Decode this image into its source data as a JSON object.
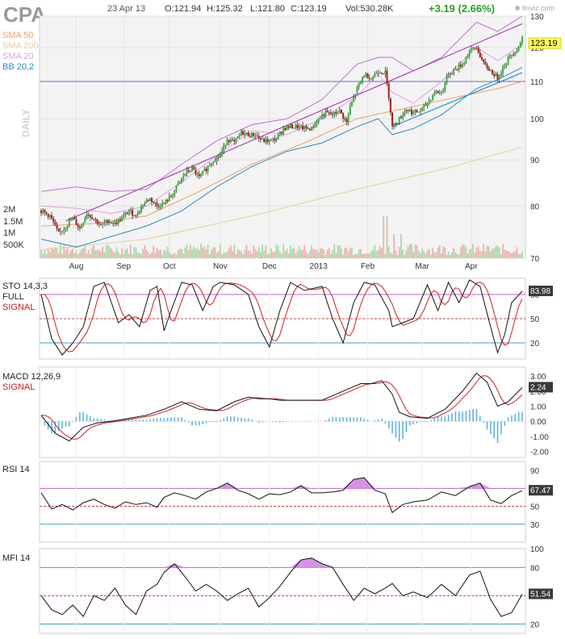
{
  "header": {
    "ticker": "CPA",
    "date": "23 Apr 13",
    "open": "O:121.94",
    "high": "H:125.32",
    "low": "L:121.80",
    "close": "C:123.19",
    "volume": "Vol:530.28K",
    "change": "+3.19 (2.66%)",
    "watermark": "finviz.com",
    "change_color": "#22a022"
  },
  "legend": [
    {
      "label": "SMA 50",
      "color": "#f2a060"
    },
    {
      "label": "SMA 200",
      "color": "#e8d090"
    },
    {
      "label": "SMA 20",
      "color": "#e0a0e0"
    },
    {
      "label": "BB 20,2",
      "color": "#2a8fc0"
    }
  ],
  "chart_data": [
    {
      "type": "candlestick",
      "name": "price",
      "side_label": "DAILY",
      "months": [
        "Aug",
        "Sep",
        "Oct",
        "Nov",
        "Dec",
        "2013",
        "Feb",
        "Mar",
        "Apr"
      ],
      "yticks": [
        70,
        80,
        90,
        100,
        110,
        120,
        130
      ],
      "ylim": [
        70,
        130
      ],
      "scale": "log",
      "last_price": "123.19",
      "volume_ticks": [
        "2M",
        "1.5M",
        "1M",
        "500K"
      ],
      "horizontal_line": 110,
      "close_path": [
        [
          0,
          79
        ],
        [
          5,
          78
        ],
        [
          10,
          74.5
        ],
        [
          14,
          76
        ],
        [
          18,
          77.5
        ],
        [
          22,
          75.5
        ],
        [
          26,
          78.5
        ],
        [
          30,
          77.5
        ],
        [
          34,
          76
        ],
        [
          38,
          77
        ],
        [
          42,
          76.5
        ],
        [
          46,
          77.5
        ],
        [
          50,
          79
        ],
        [
          54,
          78
        ],
        [
          58,
          80.5
        ],
        [
          62,
          81.5
        ],
        [
          66,
          80
        ],
        [
          70,
          80.5
        ],
        [
          74,
          82
        ],
        [
          78,
          84.5
        ],
        [
          82,
          87
        ],
        [
          86,
          88
        ],
        [
          90,
          86
        ],
        [
          94,
          88
        ],
        [
          98,
          90
        ],
        [
          102,
          91
        ],
        [
          106,
          95
        ],
        [
          110,
          94
        ],
        [
          114,
          96.5
        ],
        [
          118,
          96
        ],
        [
          122,
          96
        ],
        [
          126,
          94.5
        ],
        [
          130,
          94.5
        ],
        [
          134,
          95
        ],
        [
          138,
          97.5
        ],
        [
          142,
          98
        ],
        [
          146,
          98
        ],
        [
          150,
          97.5
        ],
        [
          154,
          97.5
        ],
        [
          158,
          100
        ],
        [
          162,
          101.5
        ],
        [
          166,
          101
        ],
        [
          170,
          102
        ],
        [
          174,
          99
        ],
        [
          176,
          103
        ],
        [
          180,
          108
        ],
        [
          184,
          112
        ],
        [
          188,
          111
        ],
        [
          192,
          113
        ],
        [
          196,
          112.5
        ],
        [
          198,
          106
        ],
        [
          200,
          98
        ],
        [
          204,
          100
        ],
        [
          208,
          102.5
        ],
        [
          212,
          101.5
        ],
        [
          216,
          102
        ],
        [
          220,
          104
        ],
        [
          224,
          107
        ],
        [
          228,
          107
        ],
        [
          232,
          112
        ],
        [
          236,
          113.5
        ],
        [
          240,
          115
        ],
        [
          244,
          119
        ],
        [
          248,
          120
        ],
        [
          252,
          115
        ],
        [
          256,
          113
        ],
        [
          260,
          111
        ],
        [
          264,
          115
        ],
        [
          268,
          118
        ],
        [
          272,
          120
        ],
        [
          274,
          123.19
        ]
      ],
      "sma20_path": [
        [
          0,
          80
        ],
        [
          20,
          79.5
        ],
        [
          40,
          78.5
        ],
        [
          60,
          80
        ],
        [
          80,
          85
        ],
        [
          100,
          91
        ],
        [
          120,
          97
        ],
        [
          140,
          96
        ],
        [
          160,
          100
        ],
        [
          180,
          106
        ],
        [
          192,
          112
        ],
        [
          200,
          107
        ],
        [
          212,
          104
        ],
        [
          228,
          110
        ],
        [
          248,
          120
        ],
        [
          260,
          116
        ],
        [
          274,
          121
        ]
      ],
      "sma50_path": [
        [
          0,
          76
        ],
        [
          30,
          76.5
        ],
        [
          60,
          78
        ],
        [
          90,
          83
        ],
        [
          120,
          89
        ],
        [
          150,
          94
        ],
        [
          180,
          100
        ],
        [
          200,
          102
        ],
        [
          230,
          105
        ],
        [
          260,
          108
        ],
        [
          274,
          110
        ]
      ],
      "sma200_path": [
        [
          0,
          71.5
        ],
        [
          60,
          73.5
        ],
        [
          120,
          78
        ],
        [
          180,
          83.5
        ],
        [
          230,
          88
        ],
        [
          274,
          93
        ]
      ],
      "bb_lower_path": [
        [
          0,
          73.5
        ],
        [
          20,
          72
        ],
        [
          40,
          74
        ],
        [
          60,
          76
        ],
        [
          80,
          79
        ],
        [
          100,
          84
        ],
        [
          120,
          88.5
        ],
        [
          140,
          92
        ],
        [
          160,
          94
        ],
        [
          180,
          98
        ],
        [
          192,
          100
        ],
        [
          200,
          96
        ],
        [
          212,
          97.5
        ],
        [
          228,
          101
        ],
        [
          248,
          108
        ],
        [
          260,
          110.5
        ],
        [
          274,
          114
        ]
      ],
      "bb_upper_path": [
        [
          0,
          83
        ],
        [
          20,
          84
        ],
        [
          40,
          83
        ],
        [
          60,
          83.5
        ],
        [
          80,
          89
        ],
        [
          100,
          94.5
        ],
        [
          120,
          98.5
        ],
        [
          140,
          100
        ],
        [
          160,
          105
        ],
        [
          180,
          115
        ],
        [
          192,
          117
        ],
        [
          200,
          117
        ],
        [
          212,
          113
        ],
        [
          228,
          117
        ],
        [
          248,
          128
        ],
        [
          260,
          125
        ],
        [
          274,
          130
        ]
      ],
      "channel_upper": [
        [
          14,
          77
        ],
        [
          274,
          127.5
        ]
      ],
      "channel_lower": [
        [
          200,
          98
        ],
        [
          274,
          112.5
        ]
      ]
    },
    {
      "type": "line",
      "name": "STO 14,3,3",
      "series_labels": [
        "FULL",
        "SIGNAL"
      ],
      "yticks": [
        20,
        50,
        80
      ],
      "ylim": [
        0,
        100
      ],
      "last_value": "83.98",
      "path": [
        [
          0,
          80
        ],
        [
          6,
          25
        ],
        [
          12,
          5
        ],
        [
          18,
          20
        ],
        [
          24,
          40
        ],
        [
          30,
          90
        ],
        [
          36,
          95
        ],
        [
          40,
          70
        ],
        [
          44,
          45
        ],
        [
          50,
          55
        ],
        [
          56,
          40
        ],
        [
          62,
          85
        ],
        [
          66,
          90
        ],
        [
          70,
          35
        ],
        [
          74,
          60
        ],
        [
          80,
          95
        ],
        [
          86,
          92
        ],
        [
          92,
          60
        ],
        [
          98,
          90
        ],
        [
          102,
          95
        ],
        [
          110,
          92
        ],
        [
          118,
          80
        ],
        [
          124,
          40
        ],
        [
          130,
          15
        ],
        [
          136,
          60
        ],
        [
          142,
          95
        ],
        [
          150,
          85
        ],
        [
          160,
          90
        ],
        [
          166,
          50
        ],
        [
          172,
          20
        ],
        [
          178,
          70
        ],
        [
          184,
          95
        ],
        [
          190,
          92
        ],
        [
          198,
          60
        ],
        [
          200,
          40
        ],
        [
          206,
          45
        ],
        [
          212,
          50
        ],
        [
          220,
          92
        ],
        [
          226,
          60
        ],
        [
          232,
          95
        ],
        [
          238,
          70
        ],
        [
          244,
          98
        ],
        [
          250,
          90
        ],
        [
          256,
          40
        ],
        [
          260,
          8
        ],
        [
          264,
          30
        ],
        [
          268,
          70
        ],
        [
          274,
          83.98
        ]
      ]
    },
    {
      "type": "line+bar",
      "name": "MACD 12,26,9",
      "series_labels": [
        "SIGNAL"
      ],
      "yticks": [
        3.0,
        2.0,
        1.0,
        0.0,
        -1.0,
        -2.0
      ],
      "ylim": [
        -2.4,
        3.6
      ],
      "last_value": "2.24",
      "path": [
        [
          0,
          0.4
        ],
        [
          8,
          -0.8
        ],
        [
          16,
          -1.3
        ],
        [
          24,
          -0.4
        ],
        [
          32,
          -0.1
        ],
        [
          40,
          0
        ],
        [
          50,
          0.2
        ],
        [
          60,
          0.4
        ],
        [
          70,
          0.8
        ],
        [
          80,
          1.3
        ],
        [
          90,
          0.8
        ],
        [
          100,
          0.7
        ],
        [
          110,
          1.3
        ],
        [
          118,
          1.6
        ],
        [
          124,
          1.5
        ],
        [
          130,
          1.5
        ],
        [
          136,
          1.4
        ],
        [
          142,
          1.4
        ],
        [
          150,
          1.4
        ],
        [
          160,
          1.4
        ],
        [
          168,
          1.8
        ],
        [
          176,
          2.2
        ],
        [
          182,
          2.5
        ],
        [
          188,
          2.5
        ],
        [
          194,
          2.7
        ],
        [
          200,
          1.8
        ],
        [
          204,
          0.6
        ],
        [
          210,
          0.3
        ],
        [
          220,
          0.2
        ],
        [
          230,
          0.8
        ],
        [
          240,
          2.0
        ],
        [
          248,
          3.2
        ],
        [
          254,
          2.6
        ],
        [
          260,
          1.0
        ],
        [
          266,
          1.3
        ],
        [
          274,
          2.24
        ]
      ]
    },
    {
      "type": "line",
      "name": "RSI 14",
      "yticks": [
        90,
        70,
        50,
        30
      ],
      "ylim": [
        10,
        100
      ],
      "last_value": "67.47",
      "path": [
        [
          0,
          65
        ],
        [
          6,
          47
        ],
        [
          12,
          52
        ],
        [
          18,
          46
        ],
        [
          24,
          54
        ],
        [
          30,
          58
        ],
        [
          36,
          52
        ],
        [
          42,
          48
        ],
        [
          48,
          55
        ],
        [
          54,
          52
        ],
        [
          60,
          54
        ],
        [
          66,
          49
        ],
        [
          70,
          60
        ],
        [
          76,
          65
        ],
        [
          82,
          62
        ],
        [
          88,
          58
        ],
        [
          94,
          66
        ],
        [
          100,
          70
        ],
        [
          106,
          76
        ],
        [
          112,
          68
        ],
        [
          118,
          64
        ],
        [
          124,
          58
        ],
        [
          130,
          64
        ],
        [
          136,
          63
        ],
        [
          142,
          66
        ],
        [
          148,
          73
        ],
        [
          154,
          65
        ],
        [
          160,
          65
        ],
        [
          166,
          66
        ],
        [
          172,
          68
        ],
        [
          178,
          80
        ],
        [
          184,
          82
        ],
        [
          190,
          68
        ],
        [
          196,
          64
        ],
        [
          200,
          43
        ],
        [
          206,
          52
        ],
        [
          212,
          55
        ],
        [
          220,
          57
        ],
        [
          228,
          66
        ],
        [
          236,
          62
        ],
        [
          244,
          72
        ],
        [
          250,
          76
        ],
        [
          256,
          57
        ],
        [
          262,
          53
        ],
        [
          268,
          62
        ],
        [
          274,
          67.47
        ]
      ]
    },
    {
      "type": "line",
      "name": "MFI 14",
      "yticks": [
        100,
        80,
        50,
        20
      ],
      "ylim": [
        10,
        100
      ],
      "last_value": "51.54",
      "path": [
        [
          0,
          50
        ],
        [
          6,
          35
        ],
        [
          12,
          30
        ],
        [
          18,
          40
        ],
        [
          24,
          28
        ],
        [
          30,
          50
        ],
        [
          36,
          45
        ],
        [
          42,
          58
        ],
        [
          48,
          40
        ],
        [
          54,
          30
        ],
        [
          60,
          55
        ],
        [
          66,
          62
        ],
        [
          70,
          75
        ],
        [
          76,
          84
        ],
        [
          82,
          70
        ],
        [
          88,
          55
        ],
        [
          94,
          62
        ],
        [
          100,
          55
        ],
        [
          106,
          45
        ],
        [
          112,
          52
        ],
        [
          118,
          58
        ],
        [
          124,
          38
        ],
        [
          130,
          48
        ],
        [
          136,
          60
        ],
        [
          142,
          75
        ],
        [
          148,
          88
        ],
        [
          154,
          90
        ],
        [
          160,
          84
        ],
        [
          166,
          80
        ],
        [
          172,
          62
        ],
        [
          178,
          45
        ],
        [
          184,
          58
        ],
        [
          190,
          52
        ],
        [
          196,
          58
        ],
        [
          200,
          63
        ],
        [
          206,
          50
        ],
        [
          212,
          54
        ],
        [
          220,
          48
        ],
        [
          228,
          62
        ],
        [
          236,
          50
        ],
        [
          244,
          72
        ],
        [
          250,
          76
        ],
        [
          256,
          46
        ],
        [
          262,
          28
        ],
        [
          268,
          32
        ],
        [
          274,
          51.54
        ]
      ]
    }
  ]
}
